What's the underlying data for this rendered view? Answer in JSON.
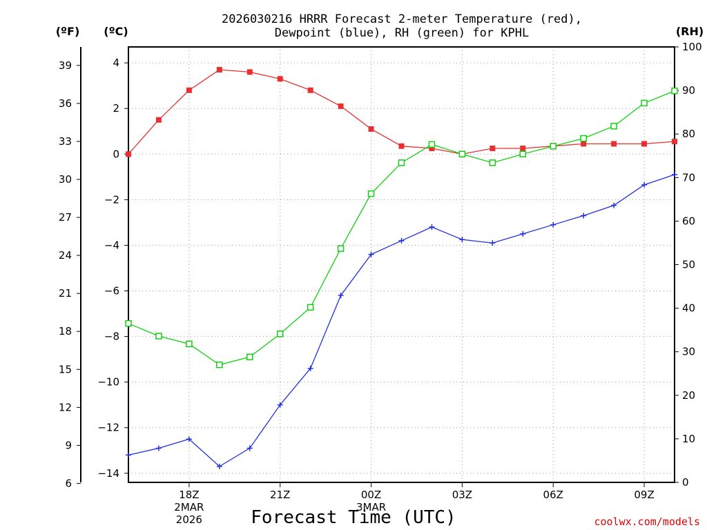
{
  "title_line1": "2026030216 HRRR Forecast 2-meter Temperature (red),",
  "title_line2": "Dewpoint (blue), RH (green) for KPHL",
  "unit_f": "(ºF)",
  "unit_c": "(ºC)",
  "unit_rh": "(RH)",
  "credit": "coolwx.com/models",
  "chart_data": {
    "type": "line",
    "title": "2026030216 HRRR Forecast 2-meter Temperature (red), Dewpoint (blue), RH (green) for KPHL",
    "xlabel": "Forecast Time (UTC)",
    "x_hours": [
      16,
      17,
      18,
      19,
      20,
      21,
      22,
      23,
      24,
      25,
      26,
      27,
      28,
      29,
      30,
      31,
      32,
      33,
      34
    ],
    "x_ticks": [
      {
        "hour": 18,
        "lines": [
          "18Z",
          "2MAR",
          "2026"
        ]
      },
      {
        "hour": 21,
        "lines": [
          "21Z"
        ]
      },
      {
        "hour": 24,
        "lines": [
          "00Z",
          "3MAR"
        ]
      },
      {
        "hour": 27,
        "lines": [
          "03Z"
        ]
      },
      {
        "hour": 30,
        "lines": [
          "06Z"
        ]
      },
      {
        "hour": 33,
        "lines": [
          "09Z"
        ]
      }
    ],
    "x_range": [
      16,
      34
    ],
    "y_celsius": {
      "range": [
        -14.4,
        4.7
      ],
      "ticks": [
        4,
        2,
        0,
        -2,
        -4,
        -6,
        -8,
        -10,
        -12,
        -14
      ]
    },
    "y_fahrenheit": {
      "ticks": [
        39,
        36,
        33,
        30,
        27,
        24,
        21,
        18,
        15,
        12,
        9,
        6
      ]
    },
    "y_rh": {
      "range": [
        0,
        100
      ],
      "ticks": [
        100,
        90,
        80,
        70,
        60,
        50,
        40,
        30,
        20,
        10,
        0
      ]
    },
    "series": [
      {
        "name": "2-meter Temperature",
        "axis": "celsius",
        "color": "#e83030",
        "marker": "filled-square",
        "values": [
          0.0,
          1.5,
          2.8,
          3.7,
          3.6,
          3.3,
          2.8,
          2.1,
          1.1,
          0.35,
          0.25,
          0.0,
          0.25,
          0.25,
          0.35,
          0.45,
          0.45,
          0.45,
          0.55
        ]
      },
      {
        "name": "Dewpoint",
        "axis": "celsius",
        "color": "#2030e0",
        "marker": "plus",
        "values": [
          -13.2,
          -12.9,
          -12.5,
          -13.7,
          -12.9,
          -11.0,
          -9.4,
          -6.2,
          -4.4,
          -3.8,
          -3.2,
          -3.75,
          -3.9,
          -3.5,
          -3.1,
          -2.7,
          -2.25,
          -1.35,
          -0.9
        ]
      },
      {
        "name": "RH",
        "axis": "rh",
        "color": "#10d010",
        "marker": "open-square",
        "values": [
          36.5,
          33.6,
          31.8,
          27.0,
          28.8,
          34.1,
          40.2,
          53.7,
          66.3,
          73.4,
          77.6,
          75.4,
          73.4,
          75.4,
          77.2,
          79.0,
          81.8,
          87.1,
          89.9
        ]
      }
    ]
  }
}
